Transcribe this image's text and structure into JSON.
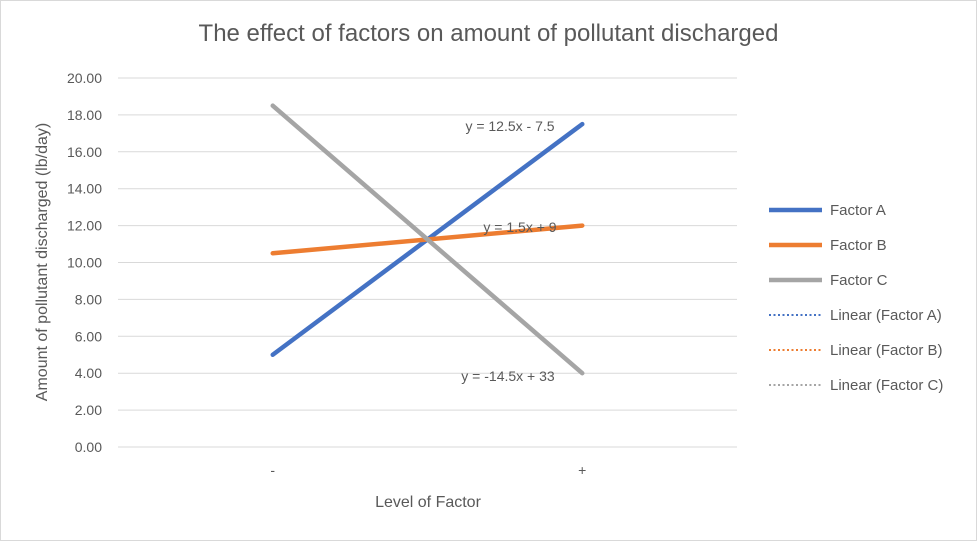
{
  "chart_data": {
    "type": "line",
    "title": "The effect of factors on amount of pollutant discharged",
    "xlabel": "Level of Factor",
    "ylabel": "Amount of pollutant discharged (lb/day)",
    "categories": [
      "-",
      "+"
    ],
    "ylim": [
      0,
      20
    ],
    "y_ticks": [
      "0.00",
      "2.00",
      "4.00",
      "6.00",
      "8.00",
      "10.00",
      "12.00",
      "14.00",
      "16.00",
      "18.00",
      "20.00"
    ],
    "grid": true,
    "legend_position": "right",
    "series": [
      {
        "name": "Factor A",
        "values": [
          5,
          17.5
        ],
        "color": "#4472c4",
        "trendline_equation": "y = 12.5x - 7.5"
      },
      {
        "name": "Factor B",
        "values": [
          10.5,
          12
        ],
        "color": "#ed7d31",
        "trendline_equation": "y = 1.5x + 9"
      },
      {
        "name": "Factor C",
        "values": [
          18.5,
          4
        ],
        "color": "#a5a5a5",
        "trendline_equation": "y = -14.5x + 33"
      }
    ],
    "legend": [
      {
        "label": "Factor A",
        "color": "#4472c4",
        "style": "solid"
      },
      {
        "label": "Factor B",
        "color": "#ed7d31",
        "style": "solid"
      },
      {
        "label": "Factor C",
        "color": "#a5a5a5",
        "style": "solid"
      },
      {
        "label": "Linear (Factor A)",
        "color": "#4472c4",
        "style": "dotted"
      },
      {
        "label": "Linear (Factor B)",
        "color": "#ed7d31",
        "style": "dotted"
      },
      {
        "label": "Linear (Factor C)",
        "color": "#a5a5a5",
        "style": "dotted"
      }
    ]
  }
}
